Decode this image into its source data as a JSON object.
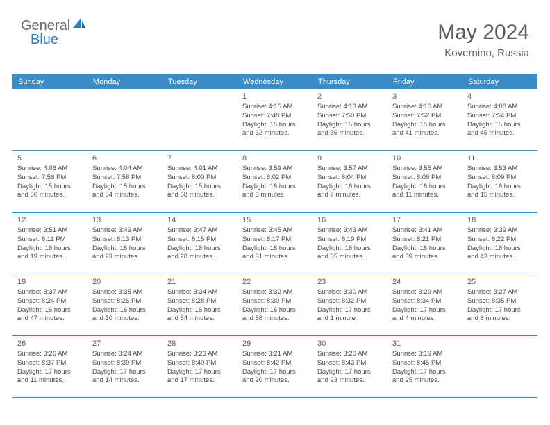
{
  "brand": {
    "part1": "General",
    "part2": "Blue",
    "color_general": "#6b6b6b",
    "color_blue": "#2a7fba"
  },
  "header": {
    "month_title": "May 2024",
    "location": "Kovernino, Russia"
  },
  "colors": {
    "header_bar": "#3b8bc4",
    "text": "#5a5a5a",
    "cell_text": "#4a4a4a",
    "border": "#3b8bc4",
    "background": "#ffffff"
  },
  "weekdays": [
    "Sunday",
    "Monday",
    "Tuesday",
    "Wednesday",
    "Thursday",
    "Friday",
    "Saturday"
  ],
  "weeks": [
    [
      null,
      null,
      null,
      {
        "day": "1",
        "sunrise": "4:15 AM",
        "sunset": "7:48 PM",
        "daylight": "15 hours and 32 minutes."
      },
      {
        "day": "2",
        "sunrise": "4:13 AM",
        "sunset": "7:50 PM",
        "daylight": "15 hours and 36 minutes."
      },
      {
        "day": "3",
        "sunrise": "4:10 AM",
        "sunset": "7:52 PM",
        "daylight": "15 hours and 41 minutes."
      },
      {
        "day": "4",
        "sunrise": "4:08 AM",
        "sunset": "7:54 PM",
        "daylight": "15 hours and 45 minutes."
      }
    ],
    [
      {
        "day": "5",
        "sunrise": "4:06 AM",
        "sunset": "7:56 PM",
        "daylight": "15 hours and 50 minutes."
      },
      {
        "day": "6",
        "sunrise": "4:04 AM",
        "sunset": "7:58 PM",
        "daylight": "15 hours and 54 minutes."
      },
      {
        "day": "7",
        "sunrise": "4:01 AM",
        "sunset": "8:00 PM",
        "daylight": "15 hours and 58 minutes."
      },
      {
        "day": "8",
        "sunrise": "3:59 AM",
        "sunset": "8:02 PM",
        "daylight": "16 hours and 3 minutes."
      },
      {
        "day": "9",
        "sunrise": "3:57 AM",
        "sunset": "8:04 PM",
        "daylight": "16 hours and 7 minutes."
      },
      {
        "day": "10",
        "sunrise": "3:55 AM",
        "sunset": "8:06 PM",
        "daylight": "16 hours and 11 minutes."
      },
      {
        "day": "11",
        "sunrise": "3:53 AM",
        "sunset": "8:09 PM",
        "daylight": "16 hours and 15 minutes."
      }
    ],
    [
      {
        "day": "12",
        "sunrise": "3:51 AM",
        "sunset": "8:11 PM",
        "daylight": "16 hours and 19 minutes."
      },
      {
        "day": "13",
        "sunrise": "3:49 AM",
        "sunset": "8:13 PM",
        "daylight": "16 hours and 23 minutes."
      },
      {
        "day": "14",
        "sunrise": "3:47 AM",
        "sunset": "8:15 PM",
        "daylight": "16 hours and 28 minutes."
      },
      {
        "day": "15",
        "sunrise": "3:45 AM",
        "sunset": "8:17 PM",
        "daylight": "16 hours and 31 minutes."
      },
      {
        "day": "16",
        "sunrise": "3:43 AM",
        "sunset": "8:19 PM",
        "daylight": "16 hours and 35 minutes."
      },
      {
        "day": "17",
        "sunrise": "3:41 AM",
        "sunset": "8:21 PM",
        "daylight": "16 hours and 39 minutes."
      },
      {
        "day": "18",
        "sunrise": "3:39 AM",
        "sunset": "8:22 PM",
        "daylight": "16 hours and 43 minutes."
      }
    ],
    [
      {
        "day": "19",
        "sunrise": "3:37 AM",
        "sunset": "8:24 PM",
        "daylight": "16 hours and 47 minutes."
      },
      {
        "day": "20",
        "sunrise": "3:35 AM",
        "sunset": "8:26 PM",
        "daylight": "16 hours and 50 minutes."
      },
      {
        "day": "21",
        "sunrise": "3:34 AM",
        "sunset": "8:28 PM",
        "daylight": "16 hours and 54 minutes."
      },
      {
        "day": "22",
        "sunrise": "3:32 AM",
        "sunset": "8:30 PM",
        "daylight": "16 hours and 58 minutes."
      },
      {
        "day": "23",
        "sunrise": "3:30 AM",
        "sunset": "8:32 PM",
        "daylight": "17 hours and 1 minute."
      },
      {
        "day": "24",
        "sunrise": "3:29 AM",
        "sunset": "8:34 PM",
        "daylight": "17 hours and 4 minutes."
      },
      {
        "day": "25",
        "sunrise": "3:27 AM",
        "sunset": "8:35 PM",
        "daylight": "17 hours and 8 minutes."
      }
    ],
    [
      {
        "day": "26",
        "sunrise": "3:26 AM",
        "sunset": "8:37 PM",
        "daylight": "17 hours and 11 minutes."
      },
      {
        "day": "27",
        "sunrise": "3:24 AM",
        "sunset": "8:39 PM",
        "daylight": "17 hours and 14 minutes."
      },
      {
        "day": "28",
        "sunrise": "3:23 AM",
        "sunset": "8:40 PM",
        "daylight": "17 hours and 17 minutes."
      },
      {
        "day": "29",
        "sunrise": "3:21 AM",
        "sunset": "8:42 PM",
        "daylight": "17 hours and 20 minutes."
      },
      {
        "day": "30",
        "sunrise": "3:20 AM",
        "sunset": "8:43 PM",
        "daylight": "17 hours and 23 minutes."
      },
      {
        "day": "31",
        "sunrise": "3:19 AM",
        "sunset": "8:45 PM",
        "daylight": "17 hours and 25 minutes."
      },
      null
    ]
  ],
  "labels": {
    "sunrise_prefix": "Sunrise: ",
    "sunset_prefix": "Sunset: ",
    "daylight_prefix": "Daylight: "
  }
}
